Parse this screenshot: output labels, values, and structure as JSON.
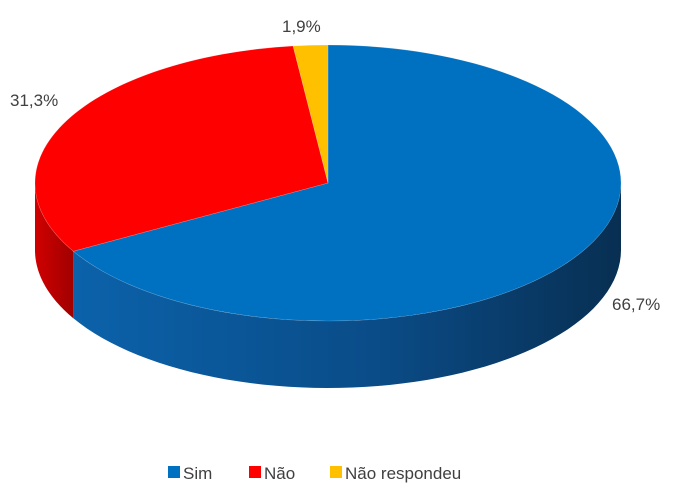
{
  "chart_data": {
    "type": "pie",
    "three_d": true,
    "title": "",
    "legend_position": "bottom",
    "slices": [
      {
        "label": "Sim",
        "value": 66.7,
        "value_label": "66,7%",
        "color": "#0070C0"
      },
      {
        "label": "Não",
        "value": 31.3,
        "value_label": "31,3%",
        "color": "#FF0000"
      },
      {
        "label": "Não respondeu",
        "value": 1.9,
        "value_label": "1,9%",
        "color": "#FFC000"
      }
    ]
  }
}
